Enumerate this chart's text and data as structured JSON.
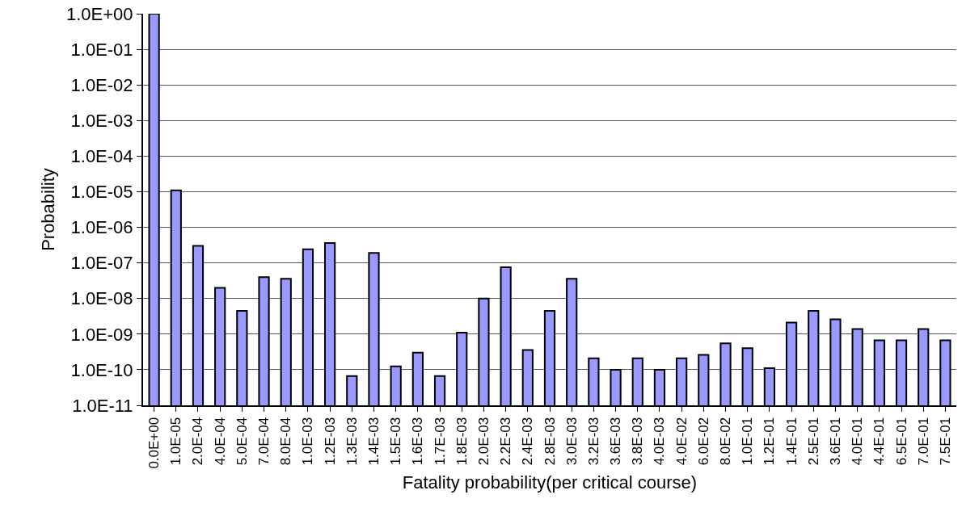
{
  "chart_data": {
    "type": "bar",
    "xlabel": "Fatality probability(per critical course)",
    "ylabel": "Probability",
    "categories": [
      "0.0E+00",
      "1.0E-05",
      "2.0E-04",
      "4.0E-04",
      "5.0E-04",
      "7.0E-04",
      "8.0E-04",
      "1.0E-03",
      "1.2E-03",
      "1.3E-03",
      "1.4E-03",
      "1.5E-03",
      "1.6E-03",
      "1.7E-03",
      "1.8E-03",
      "2.0E-03",
      "2.2E-03",
      "2.4E-03",
      "2.8E-03",
      "3.0E-03",
      "3.2E-03",
      "3.6E-03",
      "3.8E-03",
      "4.0E-03",
      "4.0E-02",
      "6.0E-02",
      "8.0E-02",
      "1.0E-01",
      "1.2E-01",
      "1.4E-01",
      "2.5E-01",
      "3.6E-01",
      "4.0E-01",
      "4.4E-01",
      "6.5E-01",
      "7.0E-01",
      "7.5E-01"
    ],
    "values": [
      1,
      1.1e-05,
      3e-07,
      2e-08,
      4.5e-09,
      4e-08,
      3.6e-08,
      2.4e-07,
      3.6e-07,
      6.6e-11,
      1.9e-07,
      1.25e-10,
      3e-10,
      6.6e-11,
      1.1e-09,
      1e-08,
      7.6e-08,
      3.6e-10,
      4.5e-09,
      3.6e-08,
      2.1e-10,
      1e-10,
      2.1e-10,
      1e-10,
      2.1e-10,
      2.6e-10,
      5.5e-10,
      4e-10,
      1.1e-10,
      2.1e-09,
      4.5e-09,
      2.6e-09,
      1.4e-09,
      6.7e-10,
      6.7e-10,
      1.4e-09,
      6.7e-10
    ],
    "color": "#9999ff",
    "log": true,
    "ylim": [
      1e-11,
      1
    ],
    "yticks": [
      {
        "value": 1,
        "label": "1.0E+00"
      },
      {
        "value": 0.1,
        "label": "1.0E-01"
      },
      {
        "value": 0.01,
        "label": "1.0E-02"
      },
      {
        "value": 0.001,
        "label": "1.0E-03"
      },
      {
        "value": 0.0001,
        "label": "1.0E-04"
      },
      {
        "value": 1e-05,
        "label": "1.0E-05"
      },
      {
        "value": 1e-06,
        "label": "1.0E-06"
      },
      {
        "value": 1e-07,
        "label": "1.0E-07"
      },
      {
        "value": 1e-08,
        "label": "1.0E-08"
      },
      {
        "value": 1e-09,
        "label": "1.0E-09"
      },
      {
        "value": 1e-10,
        "label": "1.0E-10"
      },
      {
        "value": 1e-11,
        "label": "1.0E-11"
      }
    ],
    "grid": "y"
  }
}
